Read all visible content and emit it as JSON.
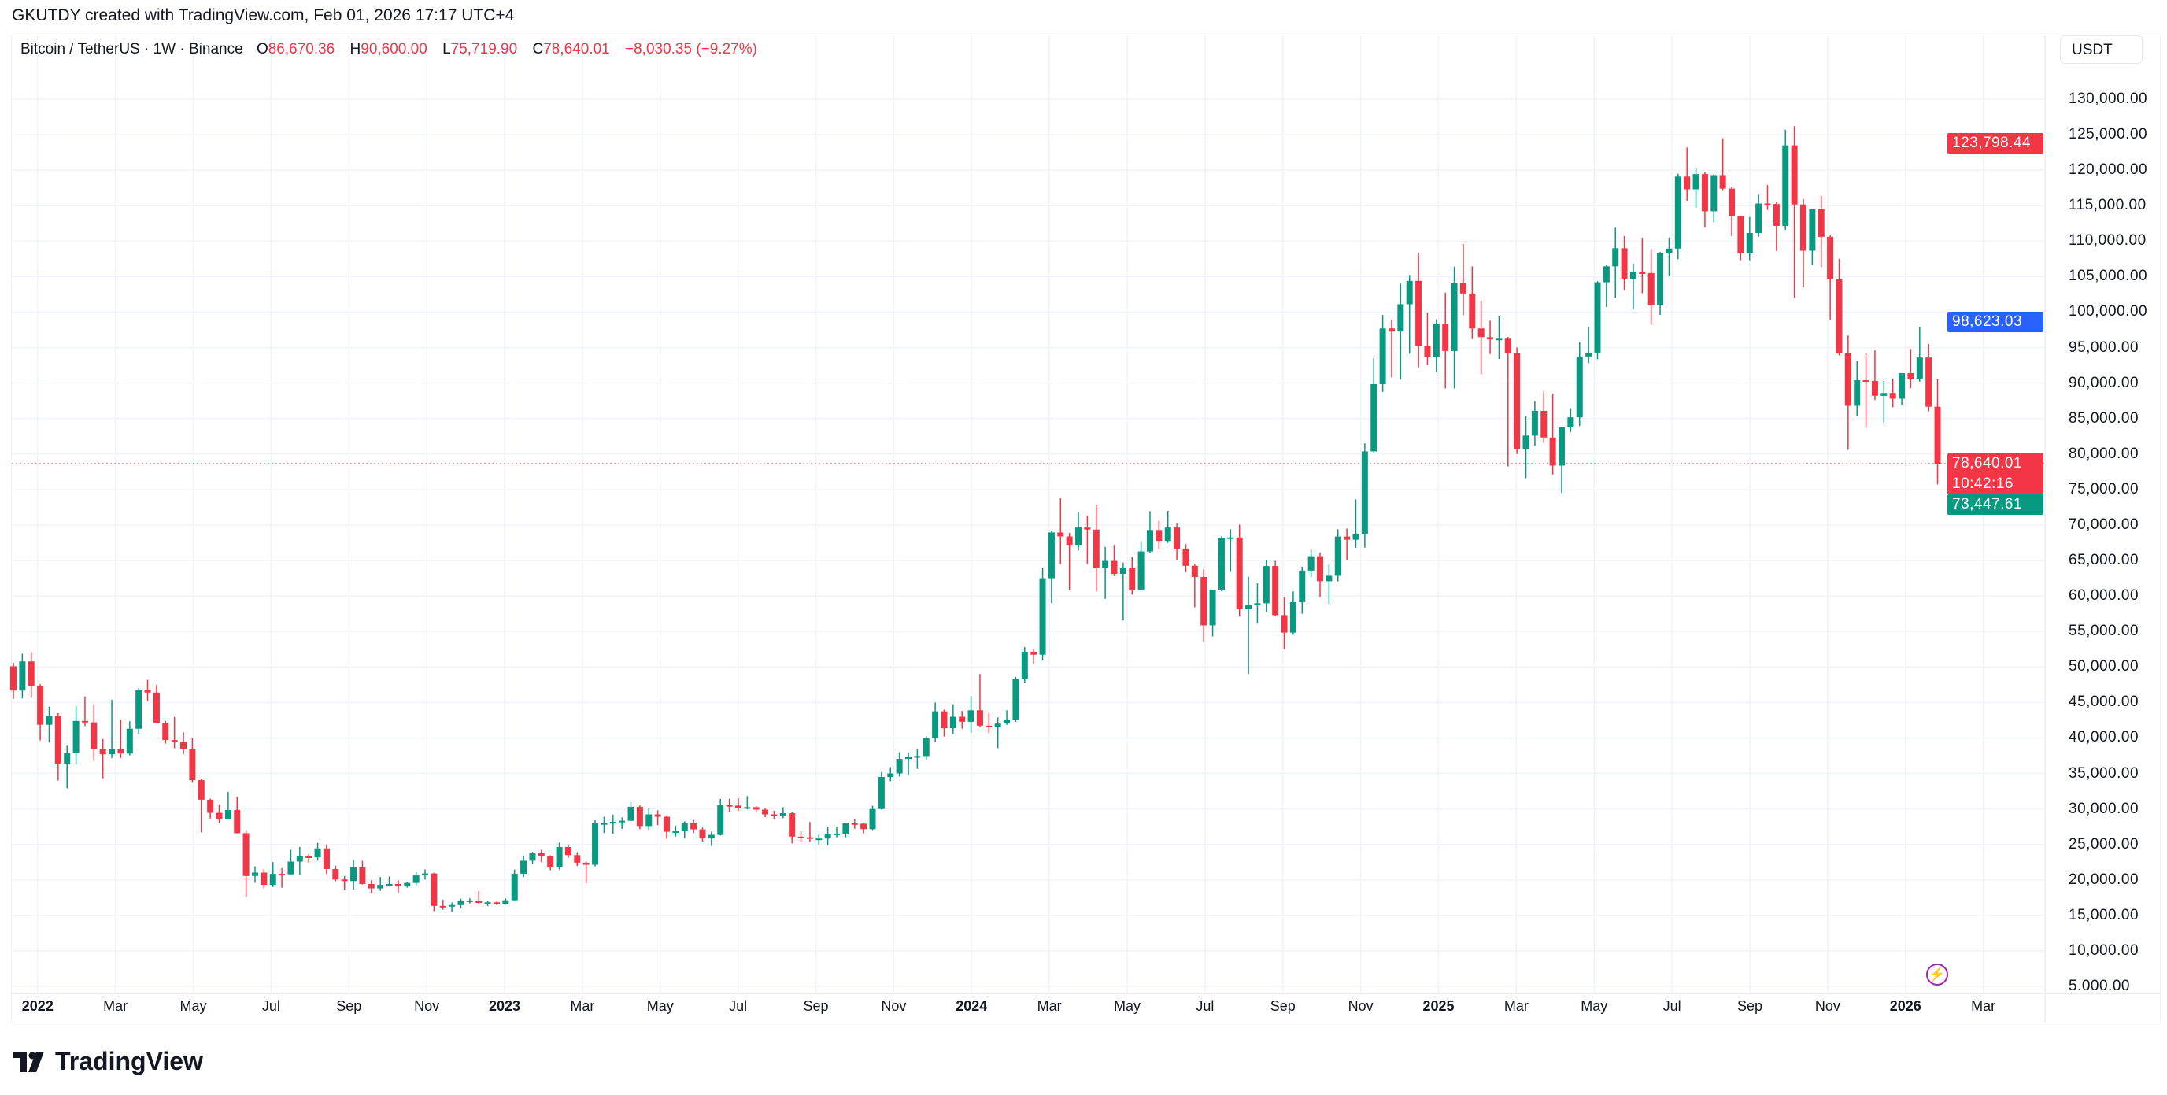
{
  "credit": "GKUTDY created with TradingView.com, Feb 01, 2026 17:17 UTC+4",
  "legend": {
    "symbol": "Bitcoin / TetherUS · 1W · Binance",
    "o_label": "O",
    "o": "86,670.36",
    "h_label": "H",
    "h": "90,600.00",
    "l_label": "L",
    "l": "75,719.90",
    "c_label": "C",
    "c": "78,640.01",
    "change": "−8,030.35 (−9.27%)"
  },
  "currency": "USDT",
  "tags": {
    "high": {
      "text": "123,798.44",
      "value": 123798.44,
      "color": "#f23645"
    },
    "blue": {
      "text": "98,623.03",
      "value": 98623.03,
      "color": "#2962ff"
    },
    "last": {
      "text": "78,640.01",
      "countdown": "10:42:16",
      "value": 78640.01,
      "color": "#f23645"
    },
    "low": {
      "text": "73,447.61",
      "value": 73447.61,
      "color": "#089981"
    }
  },
  "logo_text": "TradingView",
  "icons": {
    "alert": "lightning-icon",
    "logo": "tradingview-logo-icon"
  },
  "chart_data": {
    "type": "candlestick",
    "interval": "1W",
    "up_color": "#089981",
    "down_color": "#f23645",
    "grid": true,
    "ylim": [
      5000,
      130000
    ],
    "y_ticks": [
      "130,000.00",
      "125,000.00",
      "120,000.00",
      "115,000.00",
      "110,000.00",
      "105,000.00",
      "100,000.00",
      "95,000.00",
      "90,000.00",
      "85,000.00",
      "80,000.00",
      "75,000.00",
      "70,000.00",
      "65,000.00",
      "60,000.00",
      "55,000.00",
      "50,000.00",
      "45,000.00",
      "40,000.00",
      "35,000.00",
      "30,000.00",
      "25,000.00",
      "20,000.00",
      "15,000.00",
      "10,000.00",
      "5.000.00"
    ],
    "x_ticks": [
      "2022",
      "Mar",
      "May",
      "Jul",
      "Sep",
      "Nov",
      "2023",
      "Mar",
      "May",
      "Jul",
      "Sep",
      "Nov",
      "2024",
      "Mar",
      "May",
      "Jul",
      "Sep",
      "Nov",
      "2025",
      "Mar",
      "May",
      "Jul",
      "Sep",
      "Nov",
      "2026",
      "Mar"
    ],
    "candles_ohlc": [
      [
        50100,
        50600,
        45500,
        46680
      ],
      [
        46680,
        51880,
        45560,
        50780
      ],
      [
        50780,
        52090,
        45680,
        47290
      ],
      [
        47290,
        47570,
        39650,
        41860
      ],
      [
        41860,
        44400,
        39350,
        43080
      ],
      [
        43080,
        43500,
        34000,
        36280
      ],
      [
        36280,
        38900,
        32920,
        37880
      ],
      [
        37880,
        44500,
        36250,
        42400
      ],
      [
        42400,
        45850,
        41670,
        42200
      ],
      [
        42200,
        44750,
        36800,
        38400
      ],
      [
        38400,
        39850,
        34300,
        37700
      ],
      [
        37700,
        45400,
        37150,
        38400
      ],
      [
        38400,
        42600,
        37150,
        37800
      ],
      [
        37800,
        42350,
        37550,
        41300
      ],
      [
        41300,
        47000,
        40500,
        46800
      ],
      [
        46800,
        48200,
        45200,
        46400
      ],
      [
        46400,
        47450,
        42100,
        42150
      ],
      [
        42150,
        42400,
        39200,
        39700
      ],
      [
        39700,
        42950,
        38550,
        39450
      ],
      [
        39450,
        40800,
        37700,
        38470
      ],
      [
        38470,
        40000,
        33700,
        34050
      ],
      [
        34050,
        34250,
        26700,
        31300
      ],
      [
        31300,
        31450,
        28650,
        29450
      ],
      [
        29450,
        30600,
        28000,
        28630
      ],
      [
        28630,
        32400,
        28600,
        29850
      ],
      [
        29850,
        31700,
        26550,
        26580
      ],
      [
        26580,
        26900,
        17600,
        20550
      ],
      [
        20550,
        21900,
        19600,
        21030
      ],
      [
        21030,
        21500,
        18800,
        19300
      ],
      [
        19300,
        22500,
        19000,
        20850
      ],
      [
        20850,
        21650,
        18900,
        20790
      ],
      [
        20790,
        24250,
        20750,
        22580
      ],
      [
        22580,
        24650,
        20700,
        23300
      ],
      [
        23300,
        23650,
        22400,
        23170
      ],
      [
        23170,
        25200,
        22700,
        24440
      ],
      [
        24440,
        25000,
        20800,
        21530
      ],
      [
        21530,
        22000,
        19800,
        20050
      ],
      [
        20050,
        20550,
        18550,
        19830
      ],
      [
        19830,
        22800,
        18650,
        21800
      ],
      [
        21800,
        22700,
        19350,
        19420
      ],
      [
        19420,
        19950,
        18150,
        18800
      ],
      [
        18800,
        20400,
        18450,
        19300
      ],
      [
        19300,
        20480,
        19100,
        19420
      ],
      [
        19420,
        19950,
        18200,
        19070
      ],
      [
        19070,
        19700,
        18900,
        19570
      ],
      [
        19570,
        21100,
        19250,
        20630
      ],
      [
        20630,
        21480,
        20050,
        20900
      ],
      [
        20900,
        21000,
        15600,
        16330
      ],
      [
        16330,
        17200,
        15800,
        16280
      ],
      [
        16280,
        16800,
        15480,
        16450
      ],
      [
        16450,
        17350,
        16000,
        17100
      ],
      [
        17100,
        17400,
        16680,
        17100
      ],
      [
        17100,
        18400,
        16550,
        16760
      ],
      [
        16760,
        17050,
        16300,
        16840
      ],
      [
        16840,
        16960,
        16450,
        16620
      ],
      [
        16620,
        17400,
        16500,
        17130
      ],
      [
        17130,
        21450,
        17100,
        20870
      ],
      [
        20870,
        23400,
        20400,
        22700
      ],
      [
        22700,
        23950,
        22300,
        23740
      ],
      [
        23740,
        24250,
        22500,
        23330
      ],
      [
        23330,
        23450,
        21350,
        21770
      ],
      [
        21770,
        25250,
        21450,
        24630
      ],
      [
        24630,
        25000,
        23100,
        23490
      ],
      [
        23490,
        23900,
        21950,
        22430
      ],
      [
        22430,
        22600,
        19550,
        22130
      ],
      [
        22130,
        28400,
        21900,
        27990
      ],
      [
        27990,
        28900,
        26600,
        27990
      ],
      [
        27990,
        29200,
        26500,
        28170
      ],
      [
        28170,
        28800,
        27200,
        28330
      ],
      [
        28330,
        31000,
        28300,
        30300
      ],
      [
        30300,
        30500,
        27150,
        27590
      ],
      [
        27590,
        30050,
        27000,
        29230
      ],
      [
        29230,
        29800,
        27700,
        28900
      ],
      [
        28900,
        29100,
        25800,
        26780
      ],
      [
        26780,
        27650,
        26100,
        26850
      ],
      [
        26850,
        28250,
        25900,
        28070
      ],
      [
        28070,
        28450,
        26600,
        27120
      ],
      [
        27120,
        27400,
        25350,
        25840
      ],
      [
        25840,
        26800,
        24800,
        26340
      ],
      [
        26340,
        31400,
        26250,
        30540
      ],
      [
        30540,
        31400,
        29500,
        30470
      ],
      [
        30470,
        31500,
        29700,
        30170
      ],
      [
        30170,
        31800,
        29950,
        30250
      ],
      [
        30250,
        30400,
        29500,
        29900
      ],
      [
        29900,
        30050,
        28850,
        29230
      ],
      [
        29230,
        29750,
        28600,
        29050
      ],
      [
        29050,
        30250,
        28700,
        29400
      ],
      [
        29400,
        29500,
        25150,
        26090
      ],
      [
        26090,
        26850,
        25350,
        26000
      ],
      [
        26000,
        28150,
        25350,
        25830
      ],
      [
        25830,
        26400,
        24900,
        25830
      ],
      [
        25830,
        27500,
        24900,
        26500
      ],
      [
        26500,
        27500,
        26000,
        26520
      ],
      [
        26520,
        28050,
        26000,
        27980
      ],
      [
        27980,
        28600,
        27200,
        27920
      ],
      [
        27920,
        27950,
        26550,
        27150
      ],
      [
        27150,
        30450,
        26900,
        29990
      ],
      [
        29990,
        35200,
        29900,
        34500
      ],
      [
        34500,
        35900,
        33900,
        35000
      ],
      [
        35000,
        38000,
        34550,
        37050
      ],
      [
        37050,
        37950,
        34800,
        37380
      ],
      [
        37380,
        38400,
        35650,
        37450
      ],
      [
        37450,
        40250,
        36900,
        39980
      ],
      [
        39980,
        45000,
        39500,
        43750
      ],
      [
        43750,
        44000,
        40200,
        41370
      ],
      [
        41370,
        44750,
        40550,
        42990
      ],
      [
        42990,
        43800,
        41300,
        42280
      ],
      [
        42280,
        45900,
        40750,
        43900
      ],
      [
        43900,
        49000,
        41500,
        41730
      ],
      [
        41730,
        43500,
        40650,
        41580
      ],
      [
        41580,
        42900,
        38550,
        42030
      ],
      [
        42030,
        43900,
        41850,
        42580
      ],
      [
        42580,
        48600,
        42250,
        48300
      ],
      [
        48300,
        52800,
        47700,
        52140
      ],
      [
        52140,
        52600,
        50500,
        51730
      ],
      [
        51730,
        64000,
        50900,
        62500
      ],
      [
        62500,
        69200,
        59000,
        68950
      ],
      [
        68950,
        73800,
        64500,
        68390
      ],
      [
        68390,
        68900,
        60800,
        67210
      ],
      [
        67210,
        71800,
        66400,
        69650
      ],
      [
        69650,
        71300,
        64500,
        69360
      ],
      [
        69360,
        72800,
        60650,
        63900
      ],
      [
        63900,
        66900,
        59600,
        64940
      ],
      [
        64940,
        67200,
        62800,
        63120
      ],
      [
        63120,
        64700,
        56550,
        63890
      ],
      [
        63890,
        65500,
        60200,
        60800
      ],
      [
        60800,
        67700,
        60750,
        66270
      ],
      [
        66270,
        71950,
        66000,
        69300
      ],
      [
        69300,
        70600,
        66600,
        67760
      ],
      [
        67760,
        72000,
        67500,
        69650
      ],
      [
        69650,
        70200,
        65000,
        66680
      ],
      [
        66680,
        67300,
        63400,
        64250
      ],
      [
        64250,
        64500,
        58400,
        62680
      ],
      [
        62680,
        63800,
        53500,
        55860
      ],
      [
        55860,
        60800,
        54300,
        60800
      ],
      [
        60800,
        68400,
        60650,
        68160
      ],
      [
        68160,
        69400,
        63500,
        68250
      ],
      [
        68250,
        70050,
        57100,
        58160
      ],
      [
        58160,
        62700,
        49000,
        58710
      ],
      [
        58710,
        61800,
        56100,
        58970
      ],
      [
        58970,
        65000,
        57800,
        64220
      ],
      [
        64220,
        64950,
        57150,
        57300
      ],
      [
        57300,
        59800,
        52550,
        54840
      ],
      [
        54840,
        60650,
        54550,
        59130
      ],
      [
        59130,
        64150,
        57500,
        63580
      ],
      [
        63580,
        66500,
        62650,
        65600
      ],
      [
        65600,
        66100,
        59850,
        62080
      ],
      [
        62080,
        64500,
        58900,
        62850
      ],
      [
        62850,
        69400,
        62050,
        68370
      ],
      [
        68370,
        69500,
        65050,
        67930
      ],
      [
        67930,
        73600,
        66800,
        68780
      ],
      [
        68780,
        81500,
        66800,
        80370
      ],
      [
        80370,
        93500,
        80200,
        89850
      ],
      [
        89850,
        99600,
        88750,
        97700
      ],
      [
        97700,
        98900,
        90800,
        97260
      ],
      [
        97260,
        104000,
        90500,
        101110
      ],
      [
        101110,
        105250,
        94150,
        104400
      ],
      [
        104400,
        108350,
        92200,
        95180
      ],
      [
        95180,
        99950,
        92500,
        93700
      ],
      [
        93700,
        99000,
        91500,
        98360
      ],
      [
        98360,
        102750,
        89250,
        94520
      ],
      [
        94520,
        106400,
        89250,
        104150
      ],
      [
        104150,
        109600,
        99550,
        102620
      ],
      [
        102620,
        106450,
        96200,
        97700
      ],
      [
        97700,
        101500,
        91250,
        96470
      ],
      [
        96470,
        98800,
        94100,
        96150
      ],
      [
        96150,
        99500,
        93400,
        96250
      ],
      [
        96250,
        96500,
        78250,
        94270
      ],
      [
        94270,
        95000,
        80000,
        80700
      ],
      [
        80700,
        85300,
        76600,
        82600
      ],
      [
        82600,
        87450,
        81150,
        86080
      ],
      [
        86080,
        88800,
        81600,
        82330
      ],
      [
        82330,
        88500,
        77100,
        78370
      ],
      [
        78370,
        83550,
        74500,
        83760
      ],
      [
        83760,
        86450,
        83100,
        85170
      ],
      [
        85170,
        95750,
        83950,
        93750
      ],
      [
        93750,
        97900,
        92800,
        94300
      ],
      [
        94300,
        104350,
        93350,
        104200
      ],
      [
        104200,
        106700,
        100700,
        106450
      ],
      [
        106450,
        111980,
        102000,
        109000
      ],
      [
        109000,
        110700,
        103100,
        104600
      ],
      [
        104600,
        106800,
        100400,
        105600
      ],
      [
        105600,
        110500,
        102650,
        105500
      ],
      [
        105500,
        108900,
        98200,
        100950
      ],
      [
        100950,
        108500,
        99600,
        108350
      ],
      [
        108350,
        110500,
        105100,
        108950
      ],
      [
        108950,
        119500,
        107450,
        119100
      ],
      [
        119100,
        123200,
        115700,
        117300
      ],
      [
        117300,
        120250,
        114700,
        119450
      ],
      [
        119450,
        119800,
        112000,
        114200
      ],
      [
        114200,
        119450,
        112650,
        119300
      ],
      [
        119300,
        124500,
        117200,
        117400
      ],
      [
        117400,
        117650,
        110700,
        113500
      ],
      [
        113500,
        113500,
        107300,
        108250
      ],
      [
        108250,
        113400,
        107300,
        111150
      ],
      [
        111150,
        116600,
        110600,
        115300
      ],
      [
        115300,
        117900,
        114400,
        115230
      ],
      [
        115230,
        115500,
        108600,
        112150
      ],
      [
        112150,
        125700,
        111600,
        123500
      ],
      [
        123500,
        126200,
        102000,
        115170
      ],
      [
        115170,
        115950,
        103500,
        108650
      ],
      [
        108650,
        114000,
        106700,
        114500
      ],
      [
        114500,
        116400,
        106300,
        110600
      ],
      [
        110600,
        110800,
        98900,
        104700
      ],
      [
        104700,
        107500,
        93900,
        94200
      ],
      [
        94200,
        96700,
        80600,
        86800
      ],
      [
        86800,
        93100,
        85300,
        90400
      ],
      [
        90400,
        94200,
        83800,
        90300
      ],
      [
        90300,
        94600,
        87600,
        88200
      ],
      [
        88200,
        90300,
        84400,
        88600
      ],
      [
        88600,
        90600,
        86600,
        87800
      ],
      [
        87800,
        91400,
        86900,
        91400
      ],
      [
        91400,
        94800,
        89300,
        90600
      ],
      [
        90600,
        97900,
        90200,
        93600
      ],
      [
        93600,
        95500,
        86000,
        86670
      ],
      [
        86670,
        90600,
        75720,
        78640
      ]
    ]
  }
}
